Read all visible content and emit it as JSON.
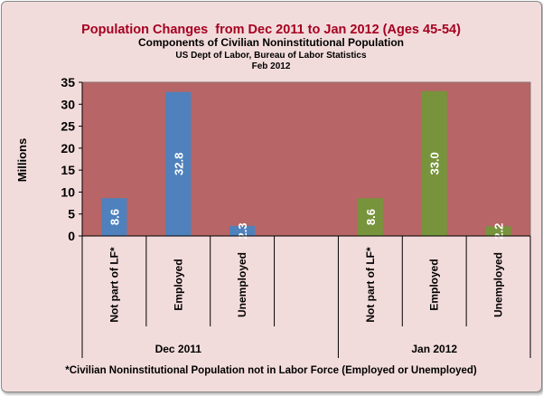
{
  "chart_data": {
    "type": "bar",
    "title": "Population Changes  from Dec 2011 to Jan 2012 (Ages 45-54)",
    "subtitle": "Components of Civilian Noninstitutional Population",
    "source": "US Dept of Labor, Bureau of Labor Statistics",
    "date": "Feb 2012",
    "ylabel": "Millions",
    "ylim": [
      0,
      35
    ],
    "yticks": [
      0,
      5,
      10,
      15,
      20,
      25,
      30,
      35
    ],
    "groups": [
      {
        "name": "Dec 2011",
        "color": "#4f81bd",
        "categories": [
          "Not part of LF*",
          "Employed",
          "Unemployed"
        ],
        "values": [
          8.6,
          32.8,
          2.3
        ]
      },
      {
        "name": "Jan 2012",
        "color": "#77933c",
        "categories": [
          "Not part of LF*",
          "Employed",
          "Unemployed"
        ],
        "values": [
          8.6,
          33.0,
          2.2
        ]
      }
    ],
    "footnote": "*Civilian Noninstitutional Population not in Labor Force (Employed or Unemployed)"
  },
  "colors": {
    "title": "#a50021",
    "plot_background": "#b76566",
    "page_background": "#f2dcdb"
  }
}
